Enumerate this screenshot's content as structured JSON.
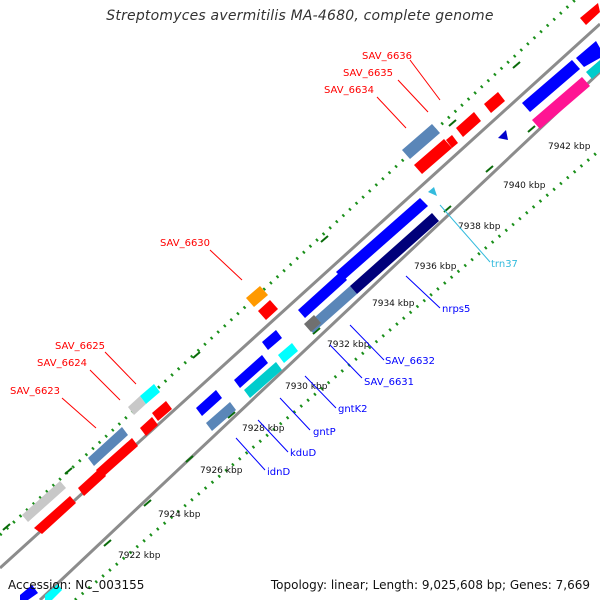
{
  "title": "Streptomyces avermitilis MA-4680, complete genome",
  "accession": "Accession: NC_003155",
  "stats": "Topology: linear; Length: 9,025,608 bp; Genes: 7,669",
  "colors": {
    "red": "#ff0000",
    "blue": "#0000ff",
    "cyan": "#00ffff",
    "steelblue": "#5a86b8",
    "navy": "#00007a",
    "orange": "#ff9900",
    "magenta": "#ff1493",
    "gray": "#c8c8c8",
    "darkgray": "#707070",
    "backbone": "#8c8c8c",
    "scale_dots": "#1a8f1a",
    "label_red": "#ff0000",
    "label_blue": "#0000ff",
    "label_cyan": "#33bbdd"
  },
  "kbp_ticks": [
    "7922 kbp",
    "7924 kbp",
    "7926 kbp",
    "7928 kbp",
    "7930 kbp",
    "7932 kbp",
    "7934 kbp",
    "7936 kbp",
    "7938 kbp",
    "7940 kbp",
    "7942 kbp"
  ],
  "red_labels": [
    "SAV_6636",
    "SAV_6635",
    "SAV_6634",
    "SAV_6630",
    "SAV_6625",
    "SAV_6624",
    "SAV_6623"
  ],
  "blue_labels": [
    "nrps5",
    "SAV_6632",
    "SAV_6631",
    "gntK2",
    "gntP",
    "kduD",
    "idnD"
  ],
  "cyan_labels": [
    "trn37"
  ]
}
